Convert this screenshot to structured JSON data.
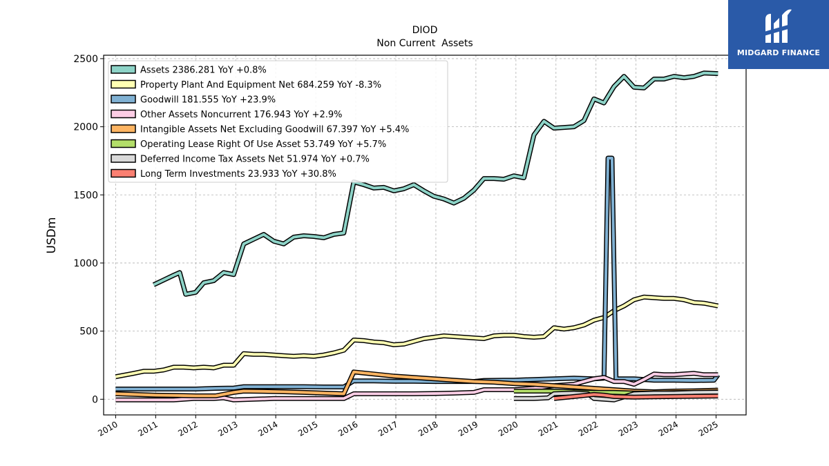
{
  "brand": {
    "name": "MIDGARD FINANCE",
    "color": "#2a5aa8"
  },
  "chart_data": {
    "type": "line",
    "title": "DIOD",
    "subtitle": "Non Current  Assets",
    "ylabel": "USDm",
    "xlabel": "",
    "xlim": [
      2009.7,
      2025.75
    ],
    "ylim": [
      -115,
      2525
    ],
    "x_ticks": [
      "2010",
      "2011",
      "2012",
      "2013",
      "2014",
      "2015",
      "2016",
      "2017",
      "2018",
      "2019",
      "2020",
      "2021",
      "2022",
      "2023",
      "2024",
      "2025"
    ],
    "y_ticks": [
      0,
      500,
      1000,
      1500,
      2000,
      2500
    ],
    "grid": true,
    "legend_position": "top-left",
    "series": [
      {
        "name": "Assets",
        "legend": "Assets  2386.281 YoY +0.8%",
        "color": "#8dd3c7",
        "points": [
          [
            2010.95,
            840
          ],
          [
            2011.2,
            875
          ],
          [
            2011.45,
            910
          ],
          [
            2011.6,
            930
          ],
          [
            2011.75,
            770
          ],
          [
            2012.0,
            785
          ],
          [
            2012.2,
            855
          ],
          [
            2012.45,
            870
          ],
          [
            2012.7,
            930
          ],
          [
            2012.95,
            915
          ],
          [
            2013.2,
            1140
          ],
          [
            2013.45,
            1175
          ],
          [
            2013.7,
            1210
          ],
          [
            2013.95,
            1160
          ],
          [
            2014.2,
            1140
          ],
          [
            2014.45,
            1190
          ],
          [
            2014.7,
            1200
          ],
          [
            2014.95,
            1195
          ],
          [
            2015.2,
            1185
          ],
          [
            2015.45,
            1210
          ],
          [
            2015.7,
            1220
          ],
          [
            2015.95,
            1595
          ],
          [
            2016.2,
            1575
          ],
          [
            2016.45,
            1550
          ],
          [
            2016.7,
            1555
          ],
          [
            2016.95,
            1530
          ],
          [
            2017.2,
            1545
          ],
          [
            2017.45,
            1575
          ],
          [
            2017.7,
            1530
          ],
          [
            2017.95,
            1490
          ],
          [
            2018.2,
            1470
          ],
          [
            2018.45,
            1440
          ],
          [
            2018.7,
            1475
          ],
          [
            2018.95,
            1535
          ],
          [
            2019.2,
            1620
          ],
          [
            2019.45,
            1620
          ],
          [
            2019.7,
            1615
          ],
          [
            2019.95,
            1640
          ],
          [
            2020.2,
            1625
          ],
          [
            2020.45,
            1940
          ],
          [
            2020.7,
            2040
          ],
          [
            2020.95,
            1990
          ],
          [
            2021.2,
            1995
          ],
          [
            2021.45,
            2000
          ],
          [
            2021.7,
            2045
          ],
          [
            2021.95,
            2205
          ],
          [
            2022.2,
            2175
          ],
          [
            2022.45,
            2295
          ],
          [
            2022.7,
            2370
          ],
          [
            2022.95,
            2290
          ],
          [
            2023.2,
            2285
          ],
          [
            2023.45,
            2350
          ],
          [
            2023.7,
            2350
          ],
          [
            2023.95,
            2370
          ],
          [
            2024.2,
            2360
          ],
          [
            2024.45,
            2370
          ],
          [
            2024.7,
            2395
          ],
          [
            2025.05,
            2390
          ]
        ]
      },
      {
        "name": "Property Plant And Equipment Net",
        "legend": "Property Plant And Equipment Net  684.259 YoY -8.3%",
        "color": "#ffffb3",
        "points": [
          [
            2010.0,
            165
          ],
          [
            2010.45,
            190
          ],
          [
            2010.7,
            205
          ],
          [
            2010.95,
            205
          ],
          [
            2011.2,
            215
          ],
          [
            2011.45,
            235
          ],
          [
            2011.7,
            235
          ],
          [
            2011.95,
            230
          ],
          [
            2012.2,
            235
          ],
          [
            2012.45,
            230
          ],
          [
            2012.7,
            250
          ],
          [
            2012.95,
            250
          ],
          [
            2013.2,
            335
          ],
          [
            2013.45,
            330
          ],
          [
            2013.7,
            330
          ],
          [
            2013.95,
            325
          ],
          [
            2014.2,
            320
          ],
          [
            2014.45,
            315
          ],
          [
            2014.7,
            320
          ],
          [
            2014.95,
            315
          ],
          [
            2015.2,
            325
          ],
          [
            2015.45,
            340
          ],
          [
            2015.7,
            360
          ],
          [
            2015.95,
            435
          ],
          [
            2016.2,
            430
          ],
          [
            2016.45,
            420
          ],
          [
            2016.7,
            415
          ],
          [
            2016.95,
            400
          ],
          [
            2017.2,
            405
          ],
          [
            2017.45,
            425
          ],
          [
            2017.7,
            445
          ],
          [
            2017.95,
            455
          ],
          [
            2018.2,
            465
          ],
          [
            2018.45,
            460
          ],
          [
            2018.7,
            455
          ],
          [
            2018.95,
            450
          ],
          [
            2019.2,
            445
          ],
          [
            2019.45,
            465
          ],
          [
            2019.7,
            470
          ],
          [
            2019.95,
            470
          ],
          [
            2020.2,
            460
          ],
          [
            2020.45,
            455
          ],
          [
            2020.7,
            460
          ],
          [
            2020.95,
            525
          ],
          [
            2021.2,
            515
          ],
          [
            2021.45,
            525
          ],
          [
            2021.7,
            545
          ],
          [
            2021.95,
            580
          ],
          [
            2022.2,
            600
          ],
          [
            2022.45,
            650
          ],
          [
            2022.7,
            685
          ],
          [
            2022.95,
            730
          ],
          [
            2023.2,
            750
          ],
          [
            2023.45,
            745
          ],
          [
            2023.7,
            740
          ],
          [
            2023.95,
            740
          ],
          [
            2024.2,
            730
          ],
          [
            2024.45,
            710
          ],
          [
            2024.7,
            705
          ],
          [
            2025.05,
            685
          ]
        ]
      },
      {
        "name": "Goodwill",
        "legend": "Goodwill  181.555 YoY +23.9%",
        "color": "#80b1d3",
        "points": [
          [
            2010.0,
            75
          ],
          [
            2010.5,
            75
          ],
          [
            2011.0,
            75
          ],
          [
            2011.5,
            75
          ],
          [
            2012.0,
            75
          ],
          [
            2012.5,
            80
          ],
          [
            2012.95,
            82
          ],
          [
            2013.2,
            92
          ],
          [
            2013.7,
            92
          ],
          [
            2014.2,
            92
          ],
          [
            2014.7,
            92
          ],
          [
            2015.2,
            90
          ],
          [
            2015.7,
            90
          ],
          [
            2015.95,
            135
          ],
          [
            2016.45,
            135
          ],
          [
            2016.95,
            132
          ],
          [
            2017.45,
            132
          ],
          [
            2017.95,
            130
          ],
          [
            2018.45,
            130
          ],
          [
            2018.95,
            130
          ],
          [
            2019.2,
            138
          ],
          [
            2019.7,
            140
          ],
          [
            2019.95,
            140
          ],
          [
            2020.45,
            145
          ],
          [
            2020.95,
            150
          ],
          [
            2021.45,
            155
          ],
          [
            2021.95,
            150
          ],
          [
            2022.2,
            155
          ],
          [
            2022.3,
            1770
          ],
          [
            2022.4,
            1770
          ],
          [
            2022.5,
            150
          ],
          [
            2022.95,
            150
          ],
          [
            2023.45,
            140
          ],
          [
            2023.95,
            140
          ],
          [
            2024.45,
            138
          ],
          [
            2024.95,
            140
          ],
          [
            2025.05,
            180
          ]
        ]
      },
      {
        "name": "Other Assets Noncurrent",
        "legend": "Other Assets Noncurrent  176.943 YoY +2.9%",
        "color": "#fccde5",
        "points": [
          [
            2010.0,
            -5
          ],
          [
            2010.5,
            -5
          ],
          [
            2011.0,
            -5
          ],
          [
            2011.45,
            -5
          ],
          [
            2011.7,
            0
          ],
          [
            2011.95,
            5
          ],
          [
            2012.45,
            5
          ],
          [
            2012.7,
            10
          ],
          [
            2012.95,
            -5
          ],
          [
            2013.45,
            0
          ],
          [
            2013.95,
            5
          ],
          [
            2014.45,
            5
          ],
          [
            2014.95,
            5
          ],
          [
            2015.45,
            5
          ],
          [
            2015.7,
            5
          ],
          [
            2015.95,
            40
          ],
          [
            2016.45,
            40
          ],
          [
            2016.95,
            40
          ],
          [
            2017.45,
            40
          ],
          [
            2017.95,
            42
          ],
          [
            2018.45,
            45
          ],
          [
            2018.95,
            50
          ],
          [
            2019.2,
            70
          ],
          [
            2019.7,
            70
          ],
          [
            2019.95,
            70
          ],
          [
            2020.45,
            80
          ],
          [
            2020.95,
            100
          ],
          [
            2021.45,
            110
          ],
          [
            2021.95,
            150
          ],
          [
            2022.2,
            160
          ],
          [
            2022.45,
            130
          ],
          [
            2022.7,
            130
          ],
          [
            2022.95,
            110
          ],
          [
            2023.2,
            145
          ],
          [
            2023.45,
            185
          ],
          [
            2023.7,
            180
          ],
          [
            2023.95,
            180
          ],
          [
            2024.2,
            185
          ],
          [
            2024.45,
            190
          ],
          [
            2024.7,
            180
          ],
          [
            2025.05,
            180
          ]
        ]
      },
      {
        "name": "Intangible Assets Net Excluding Goodwill",
        "legend": "Intangible Assets Net Excluding Goodwill  67.397 YoY +5.4%",
        "color": "#fdb462",
        "points": [
          [
            2010.0,
            40
          ],
          [
            2010.5,
            35
          ],
          [
            2011.0,
            30
          ],
          [
            2011.5,
            28
          ],
          [
            2012.0,
            25
          ],
          [
            2012.5,
            25
          ],
          [
            2012.95,
            50
          ],
          [
            2013.2,
            60
          ],
          [
            2013.7,
            58
          ],
          [
            2014.2,
            55
          ],
          [
            2014.7,
            50
          ],
          [
            2015.2,
            45
          ],
          [
            2015.7,
            40
          ],
          [
            2015.95,
            200
          ],
          [
            2016.45,
            185
          ],
          [
            2016.95,
            170
          ],
          [
            2017.45,
            160
          ],
          [
            2017.95,
            150
          ],
          [
            2018.45,
            140
          ],
          [
            2018.95,
            130
          ],
          [
            2019.45,
            125
          ],
          [
            2019.95,
            115
          ],
          [
            2020.45,
            110
          ],
          [
            2020.95,
            100
          ],
          [
            2021.45,
            90
          ],
          [
            2021.95,
            80
          ],
          [
            2022.45,
            70
          ],
          [
            2022.95,
            60
          ],
          [
            2023.45,
            55
          ],
          [
            2023.95,
            60
          ],
          [
            2024.45,
            62
          ],
          [
            2025.05,
            67
          ]
        ]
      },
      {
        "name": "Operating Lease Right Of Use Asset",
        "legend": "Operating Lease Right Of Use Asset  53.749 YoY +5.7%",
        "color": "#b3de69",
        "points": [
          [
            2019.95,
            60
          ],
          [
            2020.45,
            60
          ],
          [
            2020.95,
            60
          ],
          [
            2021.45,
            55
          ],
          [
            2021.95,
            50
          ],
          [
            2022.45,
            50
          ],
          [
            2022.95,
            45
          ],
          [
            2023.45,
            45
          ],
          [
            2023.95,
            48
          ],
          [
            2024.45,
            50
          ],
          [
            2025.05,
            54
          ]
        ]
      },
      {
        "name": "Deferred Income Tax Assets Net",
        "legend": "Deferred Income Tax Assets Net  51.974 YoY +0.7%",
        "color": "#d9d9d9",
        "points": [
          [
            2019.95,
            5
          ],
          [
            2020.45,
            5
          ],
          [
            2020.8,
            10
          ],
          [
            2020.95,
            40
          ],
          [
            2021.45,
            45
          ],
          [
            2021.8,
            40
          ],
          [
            2021.95,
            5
          ],
          [
            2022.45,
            -5
          ],
          [
            2022.95,
            40
          ],
          [
            2023.45,
            45
          ],
          [
            2023.95,
            45
          ],
          [
            2024.45,
            50
          ],
          [
            2025.05,
            52
          ]
        ]
      },
      {
        "name": "Long Term Investments",
        "legend": "Long Term Investments  23.933 YoY +30.8%",
        "color": "#fb8072",
        "points": [
          [
            2020.95,
            5
          ],
          [
            2021.45,
            20
          ],
          [
            2021.95,
            35
          ],
          [
            2022.2,
            30
          ],
          [
            2022.45,
            20
          ],
          [
            2022.95,
            15
          ],
          [
            2023.45,
            18
          ],
          [
            2023.95,
            20
          ],
          [
            2024.45,
            22
          ],
          [
            2025.05,
            24
          ]
        ]
      }
    ]
  }
}
